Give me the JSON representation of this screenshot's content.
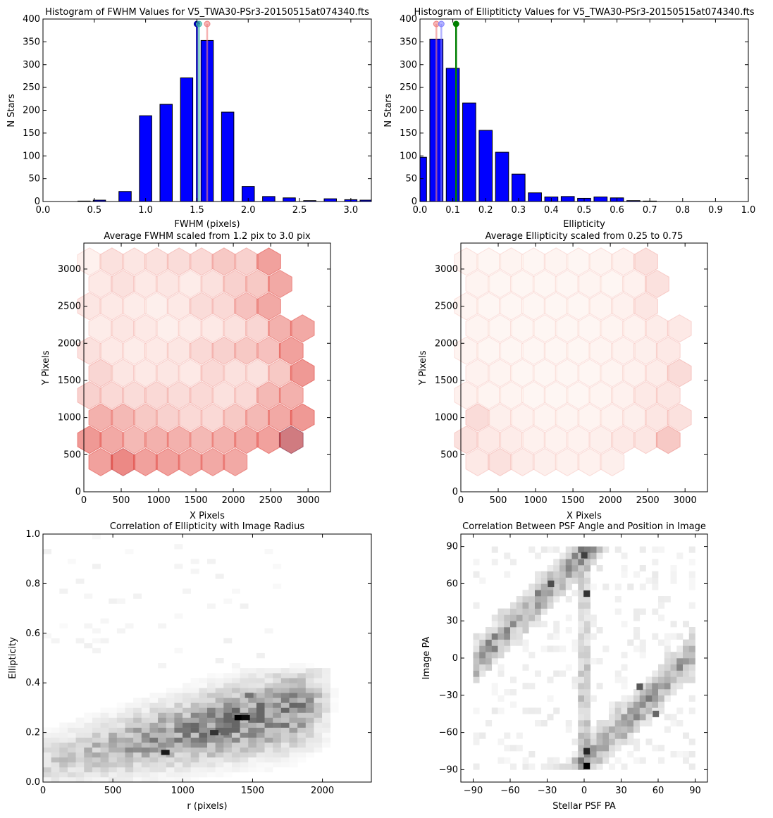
{
  "chart_data": [
    {
      "type": "bar",
      "title": "Histogram of FWHM Values for V5_TWA30-PSr3-20150515at074340.fts",
      "xlabel": "FWHM (pixels)",
      "ylabel": "N Stars",
      "xlim": [
        0.0,
        3.2
      ],
      "ylim": [
        0,
        400
      ],
      "xticks": [
        "0.0",
        "0.5",
        "1.0",
        "1.5",
        "2.0",
        "2.5",
        "3.0"
      ],
      "yticks": [
        "0",
        "50",
        "100",
        "150",
        "200",
        "250",
        "300",
        "350",
        "400"
      ],
      "bin_centers": [
        0.4,
        0.55,
        0.8,
        1.0,
        1.2,
        1.4,
        1.6,
        1.8,
        2.0,
        2.2,
        2.4,
        2.6,
        2.8,
        3.0,
        3.15
      ],
      "values": [
        1,
        3,
        22,
        188,
        213,
        271,
        353,
        196,
        33,
        11,
        8,
        2,
        6,
        4,
        3
      ],
      "bar_color": "#0000ff",
      "markers": [
        {
          "x": 1.5,
          "color": "#0000aa",
          "alpha": 1.0
        },
        {
          "x": 1.52,
          "color": "#3cb3a8",
          "alpha": 0.7
        },
        {
          "x": 1.6,
          "color": "#f08080",
          "alpha": 0.6
        }
      ]
    },
    {
      "type": "bar",
      "title": "Histogram of Elliptiticty Values for V5_TWA30-PSr3-20150515at074340.fts",
      "xlabel": "Ellipticity",
      "ylabel": "N Stars",
      "xlim": [
        0.0,
        1.0
      ],
      "ylim": [
        0,
        400
      ],
      "xticks": [
        "0.0",
        "0.1",
        "0.2",
        "0.3",
        "0.4",
        "0.5",
        "0.6",
        "0.7",
        "0.8",
        "0.9",
        "1.0"
      ],
      "yticks": [
        "0",
        "50",
        "100",
        "150",
        "200",
        "250",
        "300",
        "350",
        "400"
      ],
      "bin_centers": [
        0.0,
        0.05,
        0.1,
        0.15,
        0.2,
        0.25,
        0.3,
        0.35,
        0.4,
        0.45,
        0.5,
        0.55,
        0.6,
        0.65,
        0.7
      ],
      "values": [
        97,
        356,
        292,
        216,
        156,
        108,
        60,
        19,
        10,
        11,
        7,
        10,
        8,
        2,
        1
      ],
      "bar_color": "#0000ff",
      "markers": [
        {
          "x": 0.05,
          "color": "#f08080",
          "alpha": 0.6
        },
        {
          "x": 0.065,
          "color": "#8080ff",
          "alpha": 0.6
        },
        {
          "x": 0.11,
          "color": "#008000",
          "alpha": 1.0
        }
      ]
    },
    {
      "type": "heatmap",
      "title": "Average FWHM scaled from 1.2 pix to 3.0 pix",
      "xlabel": "X Pixels",
      "ylabel": "Y Pixels",
      "xlim": [
        0,
        3300
      ],
      "ylim": [
        0,
        3350
      ],
      "xticks": [
        "0",
        "500",
        "1000",
        "1500",
        "2000",
        "2500",
        "3000"
      ],
      "yticks": [
        "0",
        "500",
        "1000",
        "1500",
        "2000",
        "2500",
        "3000"
      ],
      "hex_grid": "11 columns x 11 rows, pointy-top hexagons, colormap white to red to dark",
      "rows": [
        {
          "y": 3100,
          "values": [
            0.05,
            0.15,
            0.12,
            0.15,
            0.18,
            0.2,
            0.3,
            0.25,
            0.55,
            null,
            null
          ]
        },
        {
          "y": 2800,
          "values": [
            0.1,
            0.15,
            0.1,
            0.12,
            0.08,
            0.15,
            0.25,
            0.3,
            0.5,
            null,
            null
          ]
        },
        {
          "y": 2500,
          "values": [
            0.12,
            0.1,
            0.08,
            0.06,
            0.1,
            0.18,
            0.2,
            0.35,
            0.5,
            null,
            null
          ]
        },
        {
          "y": 2200,
          "values": [
            0.08,
            0.12,
            0.1,
            0.06,
            0.08,
            0.1,
            0.15,
            0.22,
            0.45,
            0.5,
            null
          ]
        },
        {
          "y": 1900,
          "values": [
            0.15,
            0.1,
            0.08,
            0.1,
            0.12,
            0.2,
            0.25,
            0.3,
            0.35,
            0.55,
            null
          ]
        },
        {
          "y": 1600,
          "values": [
            0.22,
            0.12,
            0.1,
            0.12,
            0.1,
            0.2,
            0.15,
            0.15,
            0.3,
            0.6,
            null
          ]
        },
        {
          "y": 1300,
          "values": [
            0.25,
            0.2,
            0.18,
            0.2,
            0.18,
            0.2,
            0.15,
            0.2,
            0.4,
            0.45,
            null
          ]
        },
        {
          "y": 1000,
          "values": [
            0.45,
            0.4,
            0.3,
            0.25,
            0.2,
            0.2,
            0.3,
            0.4,
            0.5,
            0.6,
            null
          ]
        },
        {
          "y": 700,
          "values": [
            0.6,
            0.5,
            0.4,
            0.45,
            0.45,
            0.4,
            0.45,
            0.5,
            0.55,
            0.85,
            null
          ]
        },
        {
          "y": 400,
          "values": [
            0.55,
            0.7,
            0.55,
            0.55,
            0.5,
            0.5,
            0.5,
            null,
            null,
            null,
            null
          ]
        }
      ]
    },
    {
      "type": "heatmap",
      "title": "Average Ellipticity scaled from 0.25 to 0.75",
      "xlabel": "X Pixels",
      "ylabel": "Y Pixels",
      "xlim": [
        0,
        3300
      ],
      "ylim": [
        0,
        3350
      ],
      "xticks": [
        "0",
        "500",
        "1000",
        "1500",
        "2000",
        "2500",
        "3000"
      ],
      "yticks": [
        "0",
        "500",
        "1000",
        "1500",
        "2000",
        "2500",
        "3000"
      ],
      "hex_grid": "same hexagon layout as FWHM map, colormap white to red",
      "rows": [
        {
          "y": 3100,
          "values": [
            0.03,
            0.02,
            0.03,
            0.02,
            0.03,
            0.02,
            0.03,
            0.05,
            0.15,
            null,
            null
          ]
        },
        {
          "y": 2800,
          "values": [
            0.03,
            0.02,
            0.02,
            0.02,
            0.02,
            0.03,
            0.02,
            0.05,
            0.15,
            null,
            null
          ]
        },
        {
          "y": 2500,
          "values": [
            0.03,
            0.02,
            0.02,
            0.02,
            0.02,
            0.02,
            0.03,
            0.05,
            0.12,
            null,
            null
          ]
        },
        {
          "y": 2200,
          "values": [
            0.03,
            0.02,
            0.02,
            0.02,
            0.02,
            0.02,
            0.03,
            0.04,
            0.08,
            0.1,
            null
          ]
        },
        {
          "y": 1900,
          "values": [
            0.03,
            0.02,
            0.02,
            0.02,
            0.02,
            0.02,
            0.03,
            0.04,
            0.06,
            0.1,
            null
          ]
        },
        {
          "y": 1600,
          "values": [
            0.04,
            0.03,
            0.02,
            0.02,
            0.02,
            0.02,
            0.03,
            0.05,
            0.08,
            0.18,
            null
          ]
        },
        {
          "y": 1300,
          "values": [
            0.05,
            0.03,
            0.03,
            0.02,
            0.02,
            0.02,
            0.03,
            0.05,
            0.1,
            0.12,
            null
          ]
        },
        {
          "y": 1000,
          "values": [
            0.18,
            0.06,
            0.04,
            0.03,
            0.03,
            0.03,
            0.04,
            0.06,
            0.12,
            0.15,
            null
          ]
        },
        {
          "y": 700,
          "values": [
            0.15,
            0.1,
            0.08,
            0.05,
            0.04,
            0.04,
            0.06,
            0.1,
            0.12,
            0.3,
            null
          ]
        },
        {
          "y": 400,
          "values": [
            0.1,
            0.15,
            0.08,
            0.06,
            0.05,
            0.05,
            0.06,
            null,
            null,
            null,
            null
          ]
        }
      ]
    },
    {
      "type": "heatmap",
      "title": "Correlation of Ellipticity with Image Radius",
      "xlabel": "r (pixels)",
      "ylabel": "Ellipticity",
      "xlim": [
        0,
        2350
      ],
      "ylim": [
        0.0,
        1.0
      ],
      "xticks": [
        "0",
        "500",
        "1000",
        "1500",
        "2000"
      ],
      "yticks": [
        "0.0",
        "0.2",
        "0.4",
        "0.6",
        "0.8",
        "1.0"
      ],
      "colormap": "greys",
      "hotspots": [
        {
          "x": 1400,
          "y": 0.26,
          "v": 1.0
        },
        {
          "x": 1450,
          "y": 0.26,
          "v": 0.95
        },
        {
          "x": 1225,
          "y": 0.2,
          "v": 0.8
        },
        {
          "x": 875,
          "y": 0.12,
          "v": 0.9
        },
        {
          "x": 1300,
          "y": 0.2,
          "v": 0.6
        },
        {
          "x": 1475,
          "y": 0.35,
          "v": 0.55
        }
      ]
    },
    {
      "type": "heatmap",
      "title": "Correlation Between PSF Angle and Position in Image",
      "xlabel": "Stellar PSF PA",
      "ylabel": "Image PA",
      "xlim": [
        -100,
        100
      ],
      "ylim": [
        -100,
        100
      ],
      "xticks": [
        "−90",
        "−60",
        "−30",
        "0",
        "30",
        "60",
        "90"
      ],
      "yticks": [
        "−90",
        "−60",
        "−30",
        "0",
        "30",
        "60",
        "90"
      ],
      "colormap": "greys",
      "hotspots": [
        {
          "x": 2,
          "y": -87,
          "v": 1.0
        },
        {
          "x": 2,
          "y": -75,
          "v": 0.85
        },
        {
          "x": 2,
          "y": 52,
          "v": 0.8
        },
        {
          "x": 0,
          "y": 83,
          "v": 0.75
        },
        {
          "x": -27,
          "y": 60,
          "v": 0.7
        },
        {
          "x": 45,
          "y": -23,
          "v": 0.65
        },
        {
          "x": 58,
          "y": -45,
          "v": 0.6
        }
      ]
    }
  ]
}
